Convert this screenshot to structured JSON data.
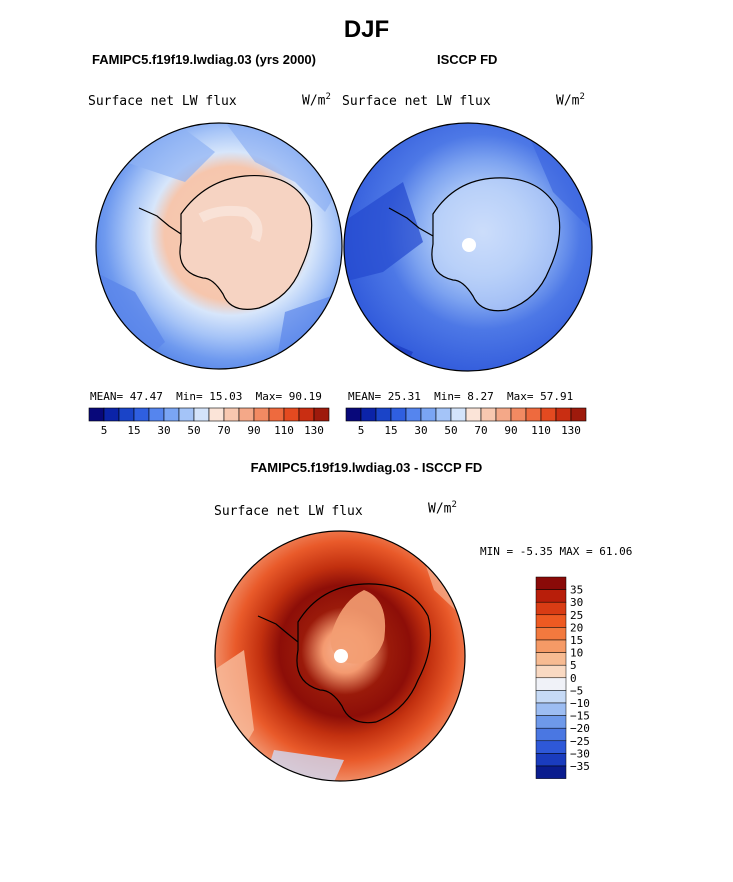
{
  "page": {
    "title": "DJF"
  },
  "panels": [
    {
      "case_label": "FAMIPC5.f19f19.lwdiag.03 (yrs 2000)",
      "variable": "Surface net LW flux",
      "units": "W/m",
      "units_exp": "2",
      "mean_label": "MEAN=",
      "mean": "47.47",
      "min_label": "Min=",
      "min": "15.03",
      "max_label": "Max=",
      "max": "90.19"
    },
    {
      "case_label": "ISCCP FD",
      "variable": "Surface net LW flux",
      "units": "W/m",
      "units_exp": "2",
      "mean_label": "MEAN=",
      "mean": "25.31",
      "min_label": "Min=",
      "min": "8.27",
      "max_label": "Max=",
      "max": "57.91"
    }
  ],
  "colorbar_top": {
    "colors": [
      "#08087a",
      "#0b23a8",
      "#1a44c8",
      "#2f5fe0",
      "#5585ee",
      "#7aa5f4",
      "#a4c4f8",
      "#d4e4fb",
      "#fbe4d8",
      "#f8c8b0",
      "#f4a888",
      "#f28a62",
      "#ee6a3e",
      "#e44a20",
      "#c92e12",
      "#9e1a0c"
    ],
    "ticks": [
      "5",
      "15",
      "30",
      "50",
      "70",
      "90",
      "110",
      "130"
    ]
  },
  "diff_panel": {
    "title": "FAMIPC5.f19f19.lwdiag.03 - ISCCP FD",
    "variable": "Surface net LW flux",
    "units": "W/m",
    "units_exp": "2",
    "min_label": "MIN =",
    "min": "-5.35",
    "max_label": "MAX =",
    "max": "61.06"
  },
  "colorbar_diff": {
    "colors": [
      "#8a0a08",
      "#b81e0a",
      "#d93c14",
      "#ee5a22",
      "#f2793e",
      "#f59a66",
      "#f7bb92",
      "#f9d9c2",
      "#f0f2f8",
      "#c6daf6",
      "#9dbdf2",
      "#6e99ea",
      "#4a77e2",
      "#2e58d8",
      "#1a3cbe",
      "#0a1c8e"
    ],
    "labels": [
      "35",
      "30",
      "25",
      "20",
      "15",
      "10",
      "5",
      "0",
      "−5",
      "−10",
      "−15",
      "−20",
      "−25",
      "−30",
      "−35"
    ]
  }
}
